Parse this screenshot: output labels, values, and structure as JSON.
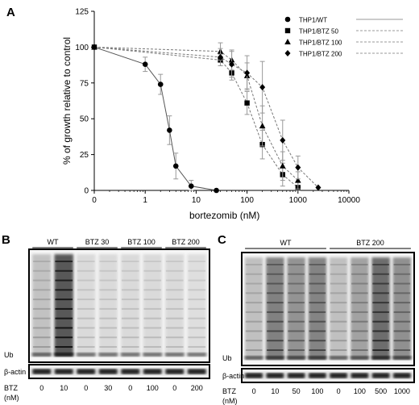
{
  "panels": {
    "a": "A",
    "b": "B",
    "c": "C"
  },
  "chart_data": {
    "type": "line",
    "xlabel": "bortezomib (nM)",
    "ylabel": "% of growth relative to control",
    "xscale": "log",
    "xlim": [
      0.1,
      10000
    ],
    "ylim": [
      0,
      125
    ],
    "xticks": [
      "0",
      "1",
      "10",
      "100",
      "1000",
      "10000"
    ],
    "yticks": [
      "0",
      "25",
      "50",
      "75",
      "100",
      "125"
    ],
    "legend_position": "top-right",
    "series": [
      {
        "name": "THP1/WT",
        "marker": "circle",
        "x": [
          0.1,
          1,
          2,
          3,
          4,
          8,
          25
        ],
        "y": [
          100,
          88,
          74,
          42,
          17,
          3,
          0
        ],
        "err": [
          0,
          5,
          7,
          10,
          9,
          4,
          0
        ]
      },
      {
        "name": "THP1/BTZ 50",
        "marker": "square",
        "x": [
          0.1,
          30,
          50,
          100,
          200,
          500,
          1000
        ],
        "y": [
          100,
          91,
          82,
          61,
          32,
          11,
          2
        ],
        "err": [
          0,
          4,
          5,
          8,
          10,
          8,
          4
        ]
      },
      {
        "name": "THP1/BTZ 100",
        "marker": "triangle",
        "x": [
          0.1,
          30,
          50,
          100,
          200,
          500,
          1000
        ],
        "y": [
          100,
          97,
          91,
          80,
          45,
          17,
          7
        ],
        "err": [
          0,
          6,
          7,
          9,
          14,
          10,
          6
        ]
      },
      {
        "name": "THP1/BTZ 200",
        "marker": "diamond",
        "x": [
          0.1,
          30,
          50,
          100,
          200,
          500,
          1000,
          2500
        ],
        "y": [
          100,
          93,
          88,
          82,
          72,
          35,
          16,
          2
        ],
        "err": [
          0,
          6,
          9,
          12,
          18,
          14,
          8,
          0
        ]
      }
    ]
  },
  "blot_b": {
    "groups": [
      "WT",
      "BTZ 30",
      "BTZ 100",
      "BTZ 200"
    ],
    "ub_label": "Ub",
    "actin_label": "β-actin",
    "btz_label": "BTZ",
    "unit_label": "(nM)",
    "lanes": [
      "0",
      "10",
      "0",
      "30",
      "0",
      "100",
      "0",
      "200"
    ],
    "intensity": [
      0.28,
      1.0,
      0.12,
      0.12,
      0.12,
      0.12,
      0.12,
      0.1
    ]
  },
  "blot_c": {
    "groups": [
      "WT",
      "BTZ 200"
    ],
    "ub_label": "Ub",
    "actin_label": "β-actin",
    "btz_label": "BTZ",
    "unit_label": "(nM)",
    "lanes": [
      "0",
      "10",
      "50",
      "100",
      "0",
      "100",
      "500",
      "1000"
    ],
    "intensity": [
      0.3,
      0.72,
      0.6,
      0.7,
      0.3,
      0.5,
      0.85,
      0.62
    ]
  }
}
